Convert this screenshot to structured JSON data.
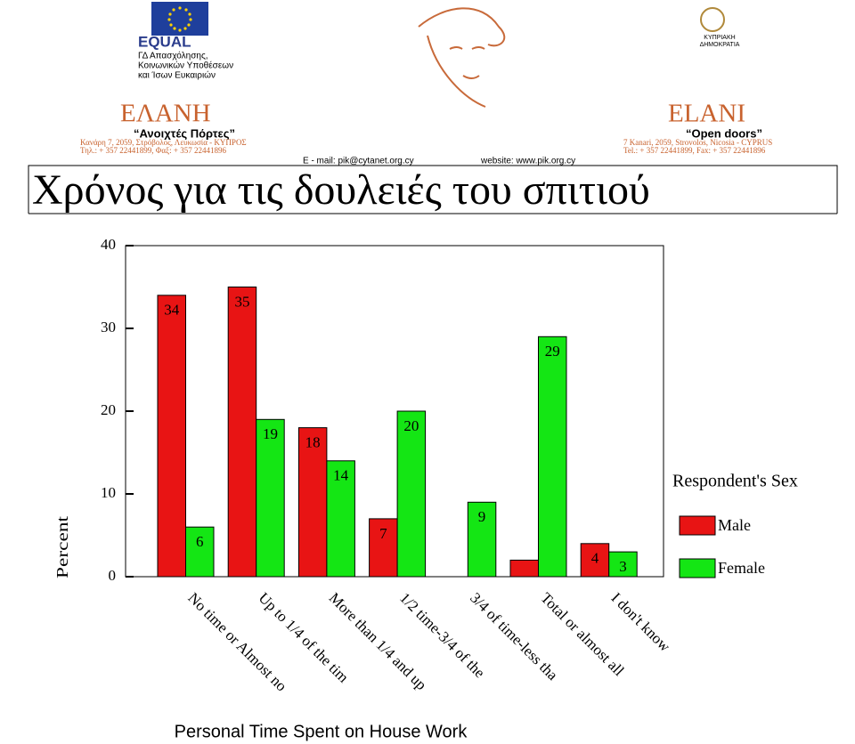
{
  "header": {
    "equal": "EQUAL",
    "org_lines": [
      "ΓΔ Απασχόλησης,",
      "Κοινωνικών Υποθέσεων",
      "και Ίσων Ευκαιριών"
    ],
    "state": [
      "ΚΥΠΡΙΑΚΗ",
      "ΔΗΜΟΚΡΑΤΙΑ"
    ],
    "name_gr": "ΕΛΑΝΗ",
    "motto_gr": "“Ανοιχτές Πόρτες”",
    "address_gr": [
      "Κανάρη 7, 2059, Στρόβολος, Λευκωσία - ΚΥΠΡΟΣ",
      "Τηλ.: + 357 22441899, Φαξ: + 357 22441896"
    ],
    "name_en": "ELANI",
    "motto_en": "“Open doors”",
    "address_en": [
      "7 Kanari, 2059, Strovolos, Nicosia - CYPRUS",
      "Tel.: + 357 22441899, Fax: + 357 22441896"
    ],
    "email": "E - mail: pik@cytanet.org.cy",
    "website": "website: www.pik.org.cy"
  },
  "chart_data": {
    "type": "bar",
    "title": "Χρόνος  για τις δουλειές του σπιτιού",
    "x_label": "Personal Time Spent on House Work",
    "y_label": "Percent",
    "categories": [
      "No time or Almost no",
      "Up to 1/4 of the tim",
      "More than 1/4 and up",
      "1/2 time-3/4 of the",
      "3/4 of time-less tha",
      "Total or almost all",
      "I don't know"
    ],
    "series": [
      {
        "name": "Male",
        "color": "#e81414",
        "values": [
          34,
          35,
          18,
          7,
          null,
          2,
          4
        ],
        "value_labels": [
          "34",
          "35",
          "18",
          "7",
          null,
          null,
          "4"
        ]
      },
      {
        "name": "Female",
        "color": "#14e614",
        "values": [
          6,
          19,
          14,
          20,
          9,
          29,
          3
        ],
        "value_labels": [
          "6",
          "19",
          "14",
          "20",
          "9",
          "29",
          "3"
        ]
      }
    ],
    "legend_title": "Respondent's Sex",
    "legend_position": "right",
    "ylim": [
      0,
      40
    ],
    "yticks": [
      0,
      10,
      20,
      30,
      40
    ]
  }
}
